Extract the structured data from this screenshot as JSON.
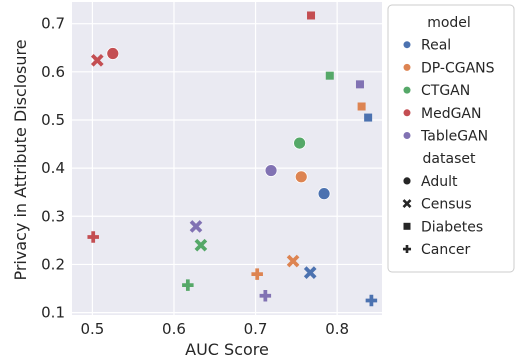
{
  "chart_data": {
    "type": "scatter",
    "xlabel": "AUC Score",
    "ylabel": "Privacy in Attribute Disclosure",
    "xlim": [
      0.475,
      0.855
    ],
    "ylim": [
      0.095,
      0.745
    ],
    "xticks": [
      0.5,
      0.6,
      0.7,
      0.8
    ],
    "xtick_labels": [
      "0.5",
      "0.6",
      "0.7",
      "0.8"
    ],
    "yticks": [
      0.1,
      0.2,
      0.3,
      0.4,
      0.5,
      0.6,
      0.7
    ],
    "ytick_labels": [
      "0.1",
      "0.2",
      "0.3",
      "0.4",
      "0.5",
      "0.6",
      "0.7"
    ],
    "grid": true,
    "background": "#eaeaf2",
    "legend": {
      "placement": "outside-right",
      "model_title": "model",
      "dataset_title": "dataset",
      "models": [
        {
          "name": "Real",
          "color": "#4c72b0"
        },
        {
          "name": "DP-CGANS",
          "color": "#dd8452"
        },
        {
          "name": "CTGAN",
          "color": "#55a868"
        },
        {
          "name": "MedGAN",
          "color": "#c44e52"
        },
        {
          "name": "TableGAN",
          "color": "#8172b3"
        }
      ],
      "datasets": [
        {
          "name": "Adult",
          "marker": "circle"
        },
        {
          "name": "Census",
          "marker": "x"
        },
        {
          "name": "Diabetes",
          "marker": "square"
        },
        {
          "name": "Cancer",
          "marker": "plus"
        }
      ]
    },
    "points": [
      {
        "model": "Real",
        "dataset": "Adult",
        "x": 0.784,
        "y": 0.347
      },
      {
        "model": "DP-CGANS",
        "dataset": "Adult",
        "x": 0.756,
        "y": 0.382
      },
      {
        "model": "CTGAN",
        "dataset": "Adult",
        "x": 0.754,
        "y": 0.452
      },
      {
        "model": "MedGAN",
        "dataset": "Adult",
        "x": 0.525,
        "y": 0.638
      },
      {
        "model": "TableGAN",
        "dataset": "Adult",
        "x": 0.719,
        "y": 0.395
      },
      {
        "model": "Real",
        "dataset": "Census",
        "x": 0.767,
        "y": 0.183
      },
      {
        "model": "DP-CGANS",
        "dataset": "Census",
        "x": 0.746,
        "y": 0.207
      },
      {
        "model": "CTGAN",
        "dataset": "Census",
        "x": 0.633,
        "y": 0.24
      },
      {
        "model": "MedGAN",
        "dataset": "Census",
        "x": 0.506,
        "y": 0.624
      },
      {
        "model": "TableGAN",
        "dataset": "Census",
        "x": 0.627,
        "y": 0.279
      },
      {
        "model": "Real",
        "dataset": "Diabetes",
        "x": 0.838,
        "y": 0.505
      },
      {
        "model": "DP-CGANS",
        "dataset": "Diabetes",
        "x": 0.83,
        "y": 0.528
      },
      {
        "model": "CTGAN",
        "dataset": "Diabetes",
        "x": 0.791,
        "y": 0.592
      },
      {
        "model": "MedGAN",
        "dataset": "Diabetes",
        "x": 0.768,
        "y": 0.717
      },
      {
        "model": "TableGAN",
        "dataset": "Diabetes",
        "x": 0.828,
        "y": 0.574
      },
      {
        "model": "Real",
        "dataset": "Cancer",
        "x": 0.842,
        "y": 0.125
      },
      {
        "model": "DP-CGANS",
        "dataset": "Cancer",
        "x": 0.702,
        "y": 0.18
      },
      {
        "model": "CTGAN",
        "dataset": "Cancer",
        "x": 0.617,
        "y": 0.157
      },
      {
        "model": "MedGAN",
        "dataset": "Cancer",
        "x": 0.501,
        "y": 0.257
      },
      {
        "model": "TableGAN",
        "dataset": "Cancer",
        "x": 0.712,
        "y": 0.135
      }
    ]
  }
}
